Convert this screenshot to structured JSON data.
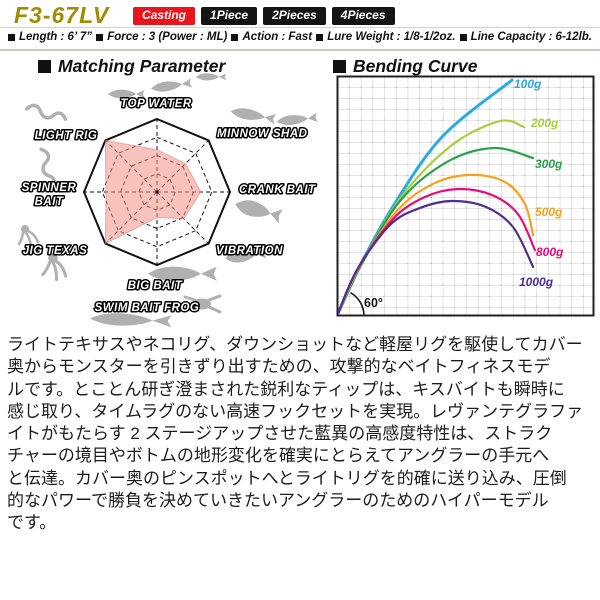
{
  "header": {
    "model": "F3-67LV",
    "tabs": [
      {
        "label": "Casting",
        "active": true
      },
      {
        "label": "1Piece",
        "active": false
      },
      {
        "label": "2Pieces",
        "active": false
      },
      {
        "label": "4Pieces",
        "active": false
      }
    ]
  },
  "specs": {
    "items": [
      {
        "text": "Length : 6’ 7”"
      },
      {
        "text": "Force : 3 (Power : ML)"
      },
      {
        "text": "Action : Fast"
      },
      {
        "text": "Lure Weight : 1/8-1/2oz."
      },
      {
        "text": "Line Capacity : 6-12lb."
      }
    ]
  },
  "sections": {
    "matching": {
      "title": "Matching Parameter"
    },
    "bending": {
      "title": "Bending Curve"
    }
  },
  "chart_data": [
    {
      "type": "radar",
      "title": "Matching Parameter",
      "axes": [
        "TOP WATER",
        "MINNOW SHAD",
        "CRANK BAIT",
        "VIBRATION",
        "BIG BAIT",
        "JIG TEXAS",
        "SPINNER BAIT",
        "LIGHT RIG"
      ],
      "values": [
        0.58,
        0.55,
        0.6,
        0.52,
        0.35,
        1.0,
        0.7,
        1.0
      ],
      "rings": 4,
      "scale_max": 1,
      "sub_labels": [
        "SWIM BAIT",
        "FROG"
      ],
      "fill_color": "#f29087",
      "grid_color": "#111111"
    },
    {
      "type": "line",
      "title": "Bending Curve",
      "annotation": "60°",
      "grid": true,
      "xlabel": "",
      "ylabel": "",
      "series": [
        {
          "name": "100g",
          "color": "#2aabe2",
          "points": [
            [
              0,
              0
            ],
            [
              0.097,
              0.225
            ],
            [
              0.226,
              0.471
            ],
            [
              0.412,
              0.75
            ],
            [
              0.681,
              0.983
            ]
          ]
        },
        {
          "name": "200g",
          "color": "#a9cf38",
          "points": [
            [
              0,
              0
            ],
            [
              0.097,
              0.221
            ],
            [
              0.253,
              0.5
            ],
            [
              0.447,
              0.712
            ],
            [
              0.634,
              0.812
            ],
            [
              0.728,
              0.787
            ]
          ]
        },
        {
          "name": "300g",
          "color": "#2aa24c",
          "points": [
            [
              0,
              0
            ],
            [
              0.097,
              0.217
            ],
            [
              0.245,
              0.479
            ],
            [
              0.428,
              0.642
            ],
            [
              0.611,
              0.7
            ],
            [
              0.763,
              0.658
            ]
          ]
        },
        {
          "name": "500g",
          "color": "#f6a31b",
          "points": [
            [
              0,
              0
            ],
            [
              0.089,
              0.208
            ],
            [
              0.237,
              0.442
            ],
            [
              0.381,
              0.554
            ],
            [
              0.525,
              0.588
            ],
            [
              0.654,
              0.558
            ],
            [
              0.731,
              0.467
            ],
            [
              0.763,
              0.337
            ]
          ]
        },
        {
          "name": "800g",
          "color": "#e60d7a",
          "points": [
            [
              0,
              0
            ],
            [
              0.082,
              0.2
            ],
            [
              0.218,
              0.404
            ],
            [
              0.342,
              0.496
            ],
            [
              0.471,
              0.529
            ],
            [
              0.603,
              0.504
            ],
            [
              0.704,
              0.425
            ],
            [
              0.77,
              0.275
            ]
          ]
        },
        {
          "name": "1000g",
          "color": "#4c2f92",
          "points": [
            [
              0,
              0
            ],
            [
              0.078,
              0.192
            ],
            [
              0.206,
              0.379
            ],
            [
              0.323,
              0.45
            ],
            [
              0.447,
              0.479
            ],
            [
              0.58,
              0.454
            ],
            [
              0.685,
              0.371
            ],
            [
              0.763,
              0.204
            ]
          ]
        }
      ]
    }
  ],
  "description": {
    "lines": [
      "ライトテキサスやネコリグ、ダウンショットなど軽屋リグを駆使してカバー",
      "奥からモンスターを引きずり出すための、攻撃的なベイトフィネスモデ",
      "ルです。とことん研ぎ澄まされた鋭利なティップは、キスバイトも瞬時に",
      "感じ取り、タイムラグのない高速フックセットを実現。レヴァンテグラファ",
      "イトがもたらす 2 ステージアップさせた藍異の高感度特性は、ストラク",
      "チャーの境目やボトムの地形変化を確実にとらえてアングラーの手元へ",
      "と伝達。カバー奥のピンスポットへとライトリグを的確に送り込み、圧倒",
      "的なパワーで勝負を決めていきたいアングラーのためのハイパーモデル",
      "です。"
    ]
  }
}
